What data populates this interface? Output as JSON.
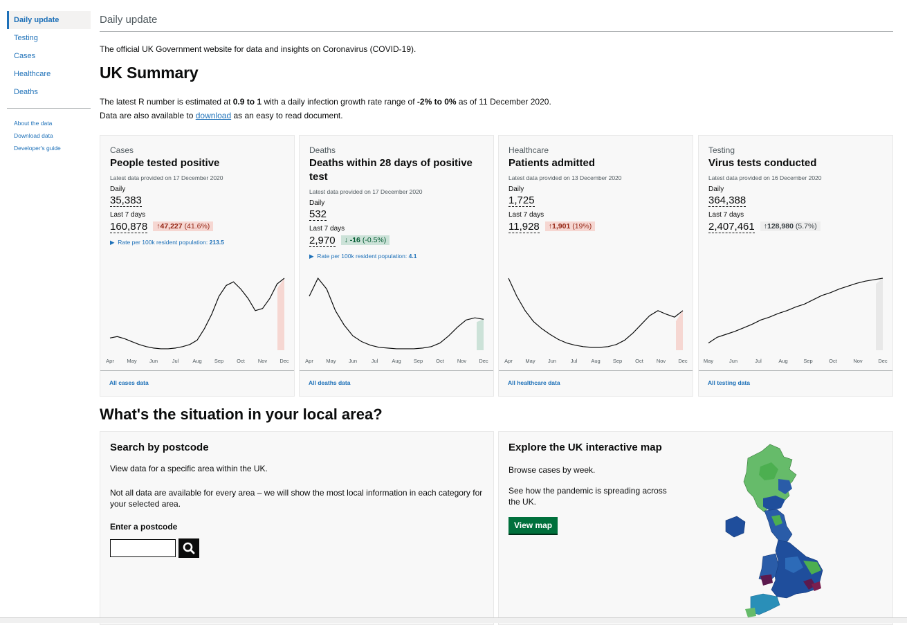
{
  "sidebar": {
    "items": [
      {
        "label": "Daily update",
        "active": true
      },
      {
        "label": "Testing"
      },
      {
        "label": "Cases"
      },
      {
        "label": "Healthcare"
      },
      {
        "label": "Deaths"
      }
    ],
    "links": [
      "About the data",
      "Download data",
      "Developer's guide"
    ]
  },
  "header": {
    "title": "Daily update"
  },
  "intro": "The official UK Government website for data and insights on Coronavirus (COVID-19).",
  "summary": {
    "title": "UK Summary",
    "r_prefix": "The latest R number is estimated at ",
    "r_range": "0.9 to 1",
    "r_mid": " with a daily infection growth rate range of ",
    "growth_range": "-2% to 0%",
    "r_suffix": " as of 11 December 2020.",
    "download_prefix": "Data are also available to ",
    "download_link": "download",
    "download_suffix": " as an easy to read document."
  },
  "cards": [
    {
      "category": "Cases",
      "title": "People tested positive",
      "latest": "Latest data provided on 17 December 2020",
      "daily_label": "Daily",
      "daily": "35,383",
      "week_label": "Last 7 days",
      "week": "160,878",
      "change": "47,227",
      "change_pct": "(41.6%)",
      "change_arrow": "↑",
      "change_color": "#942514",
      "rate_label": "Rate per 100k resident population:",
      "rate": "213.5",
      "footer": "All cases data"
    },
    {
      "category": "Deaths",
      "title": "Deaths within 28 days of positive test",
      "latest": "Latest data provided on 17 December 2020",
      "daily_label": "Daily",
      "daily": "532",
      "week_label": "Last 7 days",
      "week": "2,970",
      "change": "-16",
      "change_pct": "(-0.5%)",
      "change_arrow": "↓",
      "change_color": "#005a30",
      "rate_label": "Rate per 100k resident population:",
      "rate": "4.1",
      "footer": "All deaths data"
    },
    {
      "category": "Healthcare",
      "title": "Patients admitted",
      "latest": "Latest data provided on 13 December 2020",
      "daily_label": "Daily",
      "daily": "1,725",
      "week_label": "Last 7 days",
      "week": "11,928",
      "change": "1,901",
      "change_pct": "(19%)",
      "change_arrow": "↑",
      "change_color": "#942514",
      "footer": "All healthcare data"
    },
    {
      "category": "Testing",
      "title": "Virus tests conducted",
      "latest": "Latest data provided on 16 December 2020",
      "daily_label": "Daily",
      "daily": "364,388",
      "week_label": "Last 7 days",
      "week": "2,407,461",
      "change": "128,980",
      "change_pct": "(5.7%)",
      "change_arrow": "↑",
      "change_color": "#383f43",
      "footer": "All testing data"
    }
  ],
  "chart_data": [
    {
      "type": "line",
      "categories": [
        "Apr",
        "May",
        "Jun",
        "Jul",
        "Aug",
        "Sep",
        "Oct",
        "Nov",
        "Dec"
      ],
      "y_relative": [
        0.17,
        0.19,
        0.16,
        0.12,
        0.08,
        0.05,
        0.03,
        0.02,
        0.02,
        0.03,
        0.05,
        0.08,
        0.14,
        0.3,
        0.5,
        0.75,
        0.9,
        0.95,
        0.85,
        0.72,
        0.55,
        0.58,
        0.72,
        0.92,
        1.0
      ],
      "highlight": "last 7 days",
      "highlight_color": "#f6d7d2"
    },
    {
      "type": "line",
      "categories": [
        "Apr",
        "May",
        "Jun",
        "Jul",
        "Aug",
        "Sep",
        "Oct",
        "Nov",
        "Dec"
      ],
      "y_relative": [
        0.75,
        1.0,
        0.85,
        0.55,
        0.35,
        0.2,
        0.12,
        0.07,
        0.04,
        0.03,
        0.02,
        0.02,
        0.02,
        0.03,
        0.05,
        0.1,
        0.2,
        0.32,
        0.42,
        0.45,
        0.43
      ],
      "highlight": "last 7 days",
      "highlight_color": "#cce2d8"
    },
    {
      "type": "line",
      "categories": [
        "Apr",
        "May",
        "Jun",
        "Jul",
        "Aug",
        "Sep",
        "Oct",
        "Nov",
        "Dec"
      ],
      "y_relative": [
        1.0,
        0.75,
        0.55,
        0.4,
        0.3,
        0.22,
        0.15,
        0.1,
        0.07,
        0.05,
        0.04,
        0.04,
        0.05,
        0.08,
        0.14,
        0.24,
        0.36,
        0.48,
        0.55,
        0.5,
        0.46,
        0.55
      ],
      "highlight": "last 7 days",
      "highlight_color": "#f6d7d2"
    },
    {
      "type": "line",
      "categories": [
        "May",
        "Jun",
        "Jul",
        "Aug",
        "Sep",
        "Oct",
        "Nov",
        "Dec"
      ],
      "y_relative": [
        0.1,
        0.18,
        0.22,
        0.26,
        0.31,
        0.36,
        0.42,
        0.46,
        0.51,
        0.55,
        0.6,
        0.64,
        0.7,
        0.76,
        0.8,
        0.85,
        0.89,
        0.93,
        0.96,
        0.98,
        1.0
      ],
      "highlight": "last 7 days",
      "highlight_color": "#e8e8e8"
    }
  ],
  "local": {
    "title": "What's the situation in your local area?",
    "search": {
      "title": "Search by postcode",
      "desc1": "View data for a specific area within the UK.",
      "desc2": "Not all data are available for every area – we will show the most local information in each category for your selected area.",
      "label": "Enter a postcode",
      "value": ""
    },
    "map": {
      "title": "Explore the UK interactive map",
      "desc1": "Browse cases by week.",
      "desc2": "See how the pandemic is spreading across the UK.",
      "button": "View map"
    }
  },
  "icons": {
    "search": "search-icon"
  },
  "colors": {
    "link": "#1d70b8",
    "green_button": "#00703c",
    "map_dark": "#1f4e9c",
    "map_green": "#66bb6a",
    "map_purple": "#5c1a4e"
  }
}
